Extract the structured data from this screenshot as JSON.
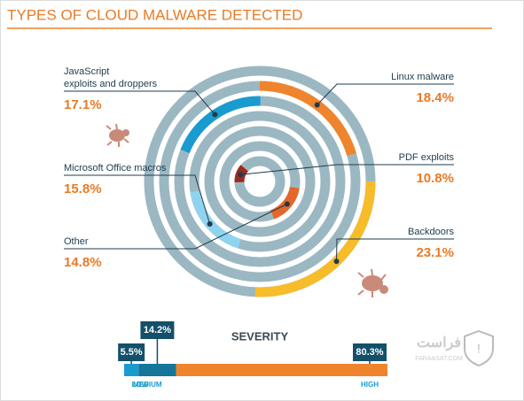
{
  "chart_data": [
    {
      "type": "radial",
      "title": "TYPES OF CLOUD MALWARE DETECTED",
      "categories": [
        "Backdoors",
        "Linux malware",
        "JavaScript exploits and droppers",
        "Microsoft Office macros",
        "Other",
        "PDF exploits"
      ],
      "values": [
        23.1,
        18.4,
        17.1,
        15.8,
        14.8,
        10.8
      ],
      "value_labels": [
        "23.1%",
        "18.4%",
        "17.1%",
        "15.8%",
        "14.8%",
        "10.8%"
      ],
      "colors": [
        "#f6bc2a",
        "#f0842c",
        "#1a9bd0",
        "#8fd3ee",
        "#e4672a",
        "#9b2a1f"
      ],
      "track_color": "#9bb8c2"
    },
    {
      "type": "stacked_bar",
      "title": "SEVERITY",
      "categories": [
        "LOW",
        "MEDIUM",
        "HIGH"
      ],
      "values": [
        5.5,
        14.2,
        80.3
      ],
      "value_labels": [
        "5.5%",
        "14.2%",
        "80.3%"
      ],
      "colors": [
        "#1a9bd0",
        "#14779a",
        "#f0842c"
      ]
    }
  ],
  "watermark": {
    "name": "فراست",
    "url": "FARAASAT.COM"
  }
}
